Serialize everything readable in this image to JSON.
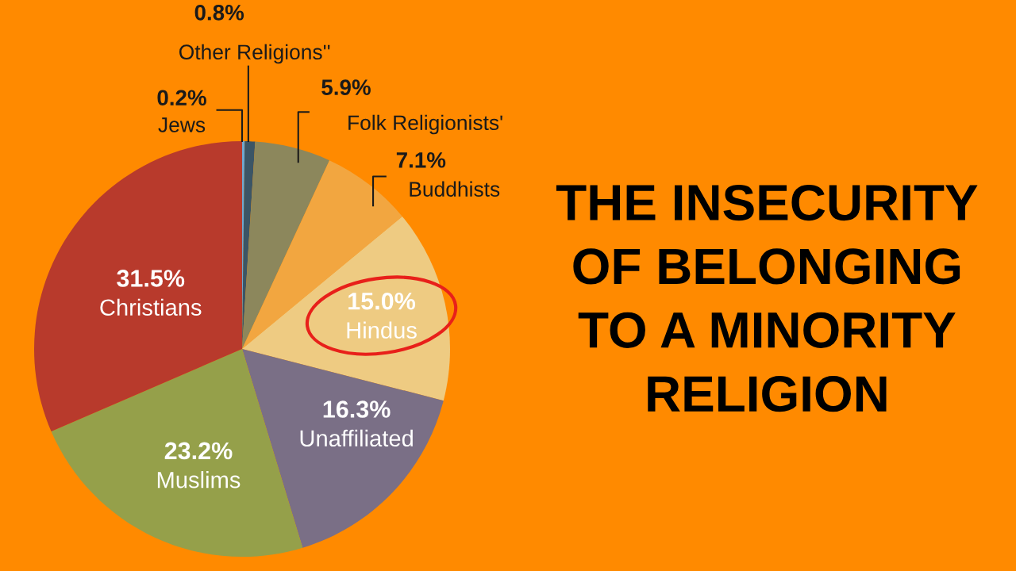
{
  "chart_data": {
    "type": "pie",
    "title": "THE INSECURITY\nOF BELONGING\nTO A MINORITY\nRELIGION",
    "categories": [
      "Jews",
      "Other Religions''",
      "Folk Religionists'",
      "Buddhists",
      "Hindus",
      "Unaffiliated",
      "Muslims",
      "Christians"
    ],
    "values": [
      0.2,
      0.8,
      5.9,
      7.1,
      15.0,
      16.3,
      23.2,
      31.5
    ],
    "value_labels": [
      "0.2%",
      "0.8%",
      "5.9%",
      "7.1%",
      "15.0%",
      "16.3%",
      "23.2%",
      "31.5%"
    ],
    "colors": [
      "#6fa8d0",
      "#3b5566",
      "#8c875c",
      "#f2a640",
      "#eecb82",
      "#7a6f86",
      "#95a04a",
      "#b83a2c"
    ],
    "legend": false
  }
}
